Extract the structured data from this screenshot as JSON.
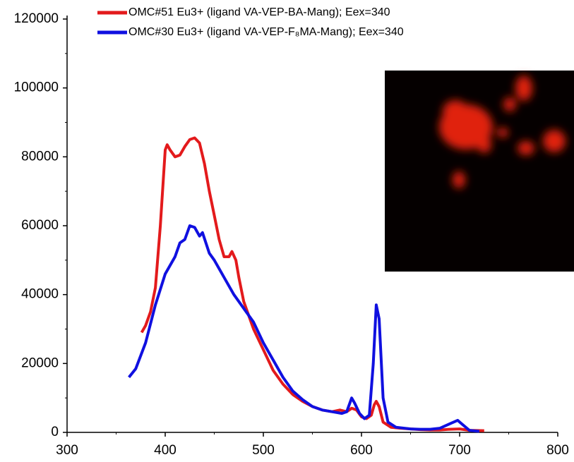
{
  "chart_data": {
    "type": "line",
    "xlim": [
      300,
      800
    ],
    "xticks": [
      300,
      400,
      500,
      600,
      700,
      800
    ],
    "ylim": [
      0,
      120000
    ],
    "yticks": [
      0,
      20000,
      40000,
      60000,
      80000,
      100000,
      120000
    ],
    "legend": "top-left",
    "series": [
      {
        "name": "OMC#51 Eu3+ (ligand VA-VEP-BA-Mang); Eex=340",
        "color": "#e31a1c",
        "x": [
          376,
          380,
          385,
          390,
          395,
          400,
          402,
          405,
          410,
          415,
          420,
          425,
          430,
          435,
          440,
          445,
          450,
          455,
          460,
          465,
          468,
          472,
          475,
          480,
          490,
          500,
          510,
          520,
          530,
          540,
          550,
          560,
          570,
          578,
          585,
          590,
          595,
          600,
          605,
          610,
          613,
          615,
          618,
          622,
          630,
          640,
          650,
          660,
          670,
          680,
          690,
          700,
          710,
          725
        ],
        "values": [
          29000,
          31000,
          35000,
          42000,
          60000,
          82000,
          83500,
          82000,
          80000,
          80500,
          83000,
          85000,
          85500,
          84000,
          78000,
          70000,
          63000,
          56000,
          51000,
          51000,
          52500,
          50000,
          45000,
          38000,
          30000,
          24000,
          18000,
          14000,
          11000,
          9000,
          7500,
          6500,
          6000,
          6500,
          6000,
          7000,
          6500,
          4500,
          4000,
          5000,
          8000,
          9000,
          7500,
          3000,
          1500,
          1200,
          1000,
          800,
          700,
          700,
          900,
          1000,
          600,
          500
        ]
      },
      {
        "name": "OMC#30 Eu3+ (ligand VA-VEP-F₈MA-Mang); Eex=340",
        "color": "#1010e0",
        "x": [
          363,
          370,
          380,
          390,
          400,
          410,
          415,
          420,
          425,
          430,
          435,
          438,
          445,
          450,
          460,
          470,
          480,
          490,
          500,
          510,
          520,
          530,
          540,
          550,
          560,
          570,
          580,
          585,
          590,
          593,
          598,
          603,
          608,
          612,
          615,
          618,
          622,
          627,
          635,
          650,
          660,
          670,
          680,
          690,
          698,
          702,
          710,
          720
        ],
        "values": [
          16000,
          18500,
          26000,
          37000,
          46000,
          51000,
          55000,
          56000,
          60000,
          59500,
          57000,
          58000,
          52000,
          50000,
          45000,
          40000,
          36000,
          32000,
          26000,
          21000,
          16000,
          12000,
          9500,
          7500,
          6500,
          6000,
          5500,
          6000,
          10000,
          8500,
          5500,
          4000,
          5000,
          20000,
          37000,
          33000,
          10000,
          3000,
          1500,
          1000,
          900,
          900,
          1200,
          2500,
          3500,
          2500,
          600,
          300
        ]
      }
    ]
  }
}
